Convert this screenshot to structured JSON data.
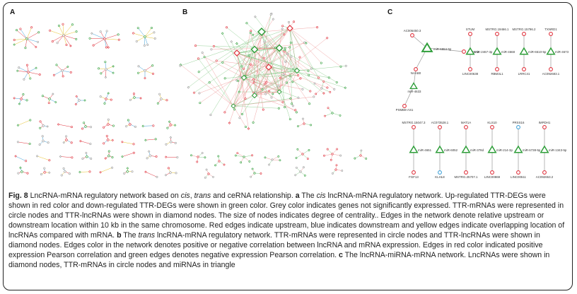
{
  "panels": {
    "a": "A",
    "b": "B",
    "c": "C"
  },
  "colors": {
    "up": "#e0303b",
    "down": "#2f9e3a",
    "grey": "#9a9a9a",
    "downstream": "#3ea0d8",
    "overlap": "#e8c229",
    "pos_edge": "#e98080",
    "neg_edge": "#6bbf6f"
  },
  "panel_c": {
    "top_group": {
      "circles": [
        "AC006450.3",
        "NAAB0",
        "PSMB8-AS1",
        "SLC5A5"
      ],
      "diamonds": [],
      "triangles": [
        "miR-6884-5p",
        "miR-4633"
      ]
    },
    "top_pairs": [
      {
        "top": "STUM",
        "mir": "miR-2467-3p",
        "bottom": "LINC00638"
      },
      {
        "top": "MSTRG.19466.1",
        "mir": "miR-4668",
        "bottom": "RBM3L1"
      },
      {
        "top": "MSTRG.15796.2",
        "mir": "miR-6510-5p",
        "bottom": "LRRC41"
      },
      {
        "top": "TXNRD1",
        "mir": "miR-4673",
        "bottom": "AC092683.1"
      }
    ],
    "bottom_pairs": [
      {
        "top": "MSTRG.15047.3",
        "mir": "miR-4651",
        "bottom": "FGF13"
      },
      {
        "top": "AC073528.1",
        "mir": "miR-6052",
        "bottom": "KLHL8"
      },
      {
        "top": "MAT1A",
        "mir": "miR-378d",
        "bottom": "MSTRG.25707.1"
      },
      {
        "top": "KLS10",
        "mir": "miR-214-3p",
        "bottom": "LINC00869"
      },
      {
        "top": "PRSS16",
        "mir": "miR-6738-5p",
        "bottom": "LINC00511"
      },
      {
        "top": "IMPDH1",
        "mir": "miR-1343-5p",
        "bottom": "AC092653.2"
      }
    ]
  },
  "caption": {
    "fig_label": "Fig. 8",
    "text1": " LncRNA-mRNA regulatory network based on ",
    "cis": "cis",
    "comma": ", ",
    "trans": "trans",
    "text2": " and ceRNA relationship. ",
    "a": "a",
    "text3": " The ",
    "cis2": "cis",
    "text4": " lncRNA-mRNA regulatory network. Up-regulated TTR-DEGs were shown in red color and down-regulated TTR-DEGs were shown in green color. Grey color indicates genes not significantly expressed. TTR-mRNAs were represented in circle nodes and TTR-lncRNAs were shown in diamond nodes. The size of nodes indicates degree of centrality.. Edges in the network denote relative upstream or downstream location within 10 kb in the same chromosome. Red edges indicate upstream, blue indicates downstream and yellow edges indicate overlapping location of lncRNAs compared with mRNA. ",
    "b": "b",
    "text5": " The ",
    "trans2": "trans",
    "text6": " lncRNA-mRNA regulatory network. TTR-mRNAs were represented in circle nodes and TTR-lncRNAs were shown in diamond nodes. Edges color in the network denotes positive or negative correlation between lncRNA and mRNA expression. Edges in red color indicated positive expression Pearson correlation and green edges denotes negative expression Pearson correlation. ",
    "c": "c",
    "text7": " The lncRNA-miRNA-mRNA network. LncRNAs were shown in diamond nodes, TTR-mRNAs in circle nodes and miRNAs in triangle"
  }
}
